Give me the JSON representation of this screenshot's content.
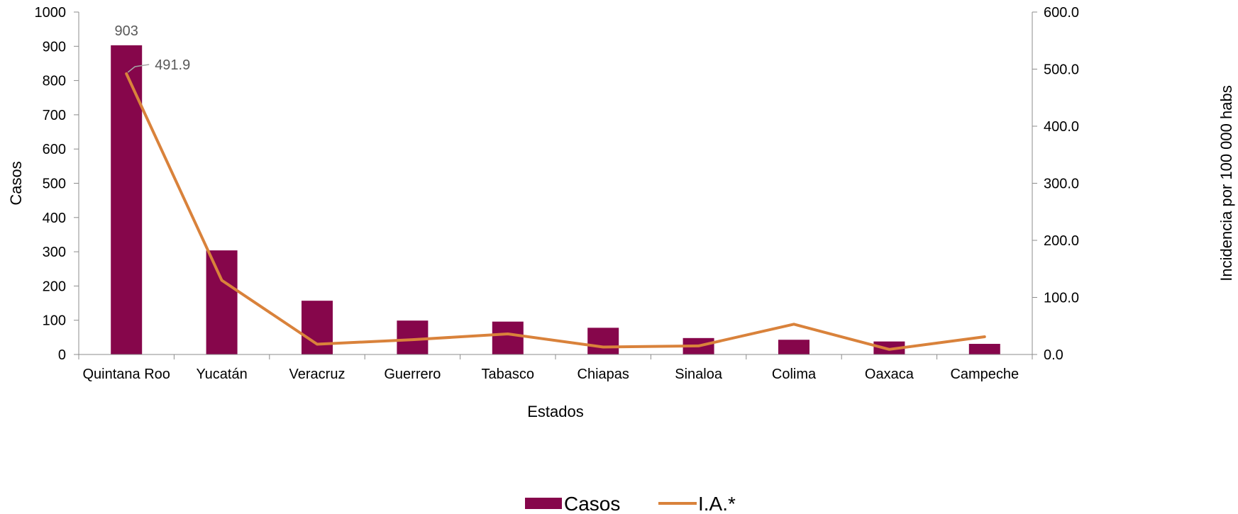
{
  "chart_data": {
    "type": "bar",
    "categories": [
      "Quintana Roo",
      "Yucatán",
      "Veracruz",
      "Guerrero",
      "Tabasco",
      "Chiapas",
      "Sinaloa",
      "Colima",
      "Oaxaca",
      "Campeche"
    ],
    "series": [
      {
        "name": "Casos",
        "type": "bar",
        "axis": "left",
        "color": "#86064B",
        "values": [
          903,
          304,
          157,
          99,
          96,
          78,
          48,
          43,
          38,
          31
        ]
      },
      {
        "name": "I.A.*",
        "type": "line",
        "axis": "right",
        "color": "#D9823B",
        "values": [
          491.9,
          130,
          18,
          26,
          36,
          13,
          15,
          53,
          9,
          31
        ]
      }
    ],
    "data_labels": [
      {
        "series": "Casos",
        "category": "Quintana Roo",
        "text": "903"
      },
      {
        "series": "I.A.*",
        "category": "Quintana Roo",
        "text": "491.9"
      }
    ],
    "xlabel": "Estados",
    "ylabel_left": "Casos",
    "ylabel_right": "Incidencia por 100 000 habs",
    "ylim_left": [
      0,
      1000
    ],
    "yticks_left": [
      "0",
      "100",
      "200",
      "300",
      "400",
      "500",
      "600",
      "700",
      "800",
      "900",
      "1000"
    ],
    "ylim_right": [
      0,
      600
    ],
    "yticks_right": [
      "0.0",
      "100.0",
      "200.0",
      "300.0",
      "400.0",
      "500.0",
      "600.0"
    ],
    "grid": false,
    "legend_position": "bottom"
  }
}
